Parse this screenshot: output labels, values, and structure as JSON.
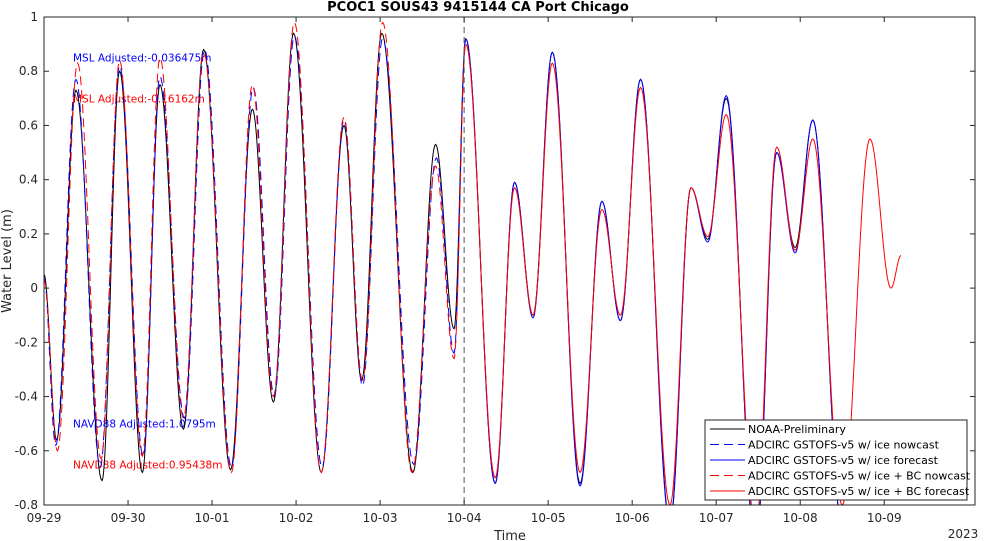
{
  "chart_data": {
    "type": "line",
    "title": "PCOC1 SOUS43 9415144 CA Port Chicago",
    "xlabel": "Time",
    "ylabel": "Water Level (m)",
    "ylim": [
      -0.8,
      1
    ],
    "xlim": [
      0,
      11.08
    ],
    "grid": false,
    "legend_position": "bottom-right",
    "x_ticks": [
      {
        "x": 0,
        "label": "09-29"
      },
      {
        "x": 1,
        "label": "09-30"
      },
      {
        "x": 2,
        "label": "10-01"
      },
      {
        "x": 3,
        "label": "10-02"
      },
      {
        "x": 4,
        "label": "10-03"
      },
      {
        "x": 5,
        "label": "10-04"
      },
      {
        "x": 6,
        "label": "10-05"
      },
      {
        "x": 7,
        "label": "10-06"
      },
      {
        "x": 8,
        "label": "10-07"
      },
      {
        "x": 9,
        "label": "10-08"
      },
      {
        "x": 10,
        "label": "10-09"
      }
    ],
    "x_year_label": "2023",
    "y_ticks": [
      -0.8,
      -0.6,
      -0.4,
      -0.2,
      0,
      0.2,
      0.4,
      0.6,
      0.8,
      1
    ],
    "nowcast_marker_x": 5,
    "annotations": [
      {
        "text": "MSL Adjusted:-0.036475m",
        "color": "#0000ff",
        "level": 0.85
      },
      {
        "text": "MSL Adjusted:-0.16162m",
        "color": "#ff0000",
        "level": 0.7
      },
      {
        "text": "NAVD88 Adjusted:1.0795m",
        "color": "#0000ff",
        "level": -0.5
      },
      {
        "text": "NAVD88 Adjusted:0.95438m",
        "color": "#ff0000",
        "level": -0.65
      }
    ],
    "series": [
      {
        "name": "NOAA-Preliminary",
        "color": "#000000",
        "dash": "solid",
        "points": [
          [
            0,
            0.05
          ],
          [
            0.15,
            -0.56
          ],
          [
            0.38,
            0.73
          ],
          [
            0.69,
            -0.71
          ],
          [
            0.9,
            0.8
          ],
          [
            1.17,
            -0.68
          ],
          [
            1.38,
            0.75
          ],
          [
            1.66,
            -0.52
          ],
          [
            1.9,
            0.88
          ],
          [
            2.22,
            -0.67
          ],
          [
            2.48,
            0.66
          ],
          [
            2.73,
            -0.42
          ],
          [
            2.97,
            0.94
          ],
          [
            3.3,
            -0.68
          ],
          [
            3.57,
            0.6
          ],
          [
            3.78,
            -0.34
          ],
          [
            4.02,
            0.94
          ],
          [
            4.39,
            -0.68
          ],
          [
            4.66,
            0.53
          ],
          [
            4.88,
            -0.15
          ],
          [
            5.02,
            0.92
          ],
          [
            5.37,
            -0.72
          ],
          [
            5.6,
            0.39
          ],
          [
            5.82,
            -0.1
          ],
          [
            6.05,
            0.87
          ],
          [
            6.38,
            -0.72
          ],
          [
            6.64,
            0.32
          ],
          [
            6.86,
            -0.12
          ],
          [
            7.1,
            0.77
          ],
          [
            7.45,
            -0.86
          ],
          [
            7.7,
            0.37
          ],
          [
            7.9,
            0.18
          ],
          [
            8.12,
            0.7
          ],
          [
            8.47,
            -0.95
          ],
          [
            8.72,
            0.5
          ],
          [
            8.94,
            0.15
          ],
          [
            9.15,
            0.62
          ],
          [
            9.5,
            -0.88
          ]
        ]
      },
      {
        "name": "ADCIRC GSTOFS-v5 w/ ice nowcast",
        "color": "#0000ff",
        "dash": "dashed",
        "points": [
          [
            0,
            0.04
          ],
          [
            0.14,
            -0.58
          ],
          [
            0.38,
            0.77
          ],
          [
            0.67,
            -0.66
          ],
          [
            0.9,
            0.82
          ],
          [
            1.18,
            -0.62
          ],
          [
            1.38,
            0.78
          ],
          [
            1.67,
            -0.48
          ],
          [
            1.91,
            0.88
          ],
          [
            2.23,
            -0.66
          ],
          [
            2.49,
            0.74
          ],
          [
            2.74,
            -0.4
          ],
          [
            2.98,
            0.93
          ],
          [
            3.31,
            -0.66
          ],
          [
            3.57,
            0.62
          ],
          [
            3.79,
            -0.36
          ],
          [
            4.03,
            0.92
          ],
          [
            4.4,
            -0.65
          ],
          [
            4.67,
            0.48
          ],
          [
            4.88,
            -0.24
          ],
          [
            5.02,
            0.92
          ]
        ]
      },
      {
        "name": "ADCIRC GSTOFS-v5 w/ ice forecast",
        "color": "#0000ff",
        "dash": "solid",
        "points": [
          [
            5.02,
            0.92
          ],
          [
            5.37,
            -0.72
          ],
          [
            5.6,
            0.39
          ],
          [
            5.82,
            -0.11
          ],
          [
            6.05,
            0.87
          ],
          [
            6.38,
            -0.73
          ],
          [
            6.64,
            0.32
          ],
          [
            6.86,
            -0.12
          ],
          [
            7.1,
            0.77
          ],
          [
            7.45,
            -0.87
          ],
          [
            7.7,
            0.37
          ],
          [
            7.9,
            0.17
          ],
          [
            8.12,
            0.71
          ],
          [
            8.47,
            -0.96
          ],
          [
            8.72,
            0.5
          ],
          [
            8.94,
            0.13
          ],
          [
            9.15,
            0.62
          ],
          [
            9.5,
            -0.88
          ]
        ]
      },
      {
        "name": "ADCIRC GSTOFS-v5 w/ ice + BC nowcast",
        "color": "#ff0000",
        "dash": "dashed",
        "points": [
          [
            0,
            0.03
          ],
          [
            0.16,
            -0.6
          ],
          [
            0.4,
            0.83
          ],
          [
            0.68,
            -0.63
          ],
          [
            0.9,
            0.84
          ],
          [
            1.17,
            -0.62
          ],
          [
            1.38,
            0.85
          ],
          [
            1.66,
            -0.48
          ],
          [
            1.9,
            0.87
          ],
          [
            2.23,
            -0.68
          ],
          [
            2.48,
            0.75
          ],
          [
            2.73,
            -0.4
          ],
          [
            2.98,
            0.98
          ],
          [
            3.3,
            -0.68
          ],
          [
            3.57,
            0.63
          ],
          [
            3.79,
            -0.34
          ],
          [
            4.03,
            0.98
          ],
          [
            4.38,
            -0.68
          ],
          [
            4.66,
            0.45
          ],
          [
            4.88,
            -0.26
          ],
          [
            5.02,
            0.9
          ]
        ]
      },
      {
        "name": "ADCIRC GSTOFS-v5 w/ ice + BC forecast",
        "color": "#ff0000",
        "dash": "solid",
        "points": [
          [
            5.02,
            0.9
          ],
          [
            5.37,
            -0.7
          ],
          [
            5.6,
            0.37
          ],
          [
            5.82,
            -0.1
          ],
          [
            6.05,
            0.83
          ],
          [
            6.38,
            -0.68
          ],
          [
            6.64,
            0.29
          ],
          [
            6.86,
            -0.1
          ],
          [
            7.1,
            0.74
          ],
          [
            7.45,
            -0.8
          ],
          [
            7.7,
            0.37
          ],
          [
            7.9,
            0.19
          ],
          [
            8.12,
            0.64
          ],
          [
            8.47,
            -0.88
          ],
          [
            8.72,
            0.52
          ],
          [
            8.94,
            0.14
          ],
          [
            9.15,
            0.55
          ],
          [
            9.5,
            -0.8
          ],
          [
            9.83,
            0.55
          ],
          [
            10.08,
            0.0
          ],
          [
            10.2,
            0.12
          ]
        ]
      }
    ]
  }
}
